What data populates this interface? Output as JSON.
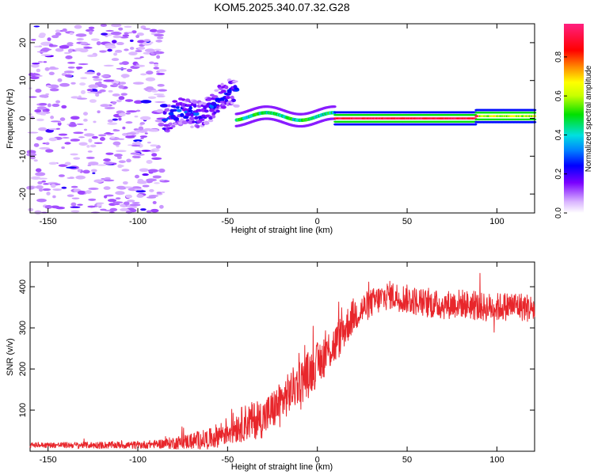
{
  "title": "KOM5.2025.340.07.32.G28",
  "chart_data": [
    {
      "type": "heatmap",
      "xlabel": "Height of straight line (km)",
      "ylabel": "Frequency (Hz)",
      "xlim": [
        -160,
        121
      ],
      "ylim": [
        -25,
        25
      ],
      "xticks": [
        -150,
        -100,
        -50,
        0,
        50,
        100
      ],
      "xtick_labels": [
        "-150",
        "-100",
        "-50",
        "0",
        "50",
        "100"
      ],
      "yticks": [
        -20,
        -10,
        0,
        10,
        20
      ],
      "ytick_labels": [
        "-20",
        "-10",
        "0",
        "10",
        "20"
      ],
      "colorbar": {
        "label": "Normalized spectral amplitude",
        "range": [
          0,
          0.97
        ],
        "ticks": [
          0,
          0.2,
          0.4,
          0.6,
          0.8
        ],
        "tick_labels": [
          "0.0",
          "0.2",
          "0.4",
          "0.6",
          "0.8"
        ],
        "colormap": "rainbow (violet-blue-cyan-green-yellow-red-magenta)"
      },
      "features": [
        {
          "name": "noise-speckle",
          "x_range": [
            -160,
            -85
          ],
          "freq_range": [
            -25,
            25
          ],
          "amplitude": 0.05
        },
        {
          "name": "dispersive-rise",
          "x_range": [
            -85,
            -45
          ],
          "freq_start": -1,
          "freq_end": 6,
          "amplitude": 0.25
        },
        {
          "name": "ridge",
          "x_range": [
            -45,
            10
          ],
          "freq": 0.5,
          "amplitude": 0.45
        },
        {
          "name": "strong-ridge",
          "x_range": [
            10,
            121
          ],
          "freq": 0,
          "amplitude": 0.9
        }
      ]
    },
    {
      "type": "line",
      "xlabel": "Height of straight line (km)",
      "ylabel": "SNR (v/v)",
      "xlim": [
        -160,
        121
      ],
      "ylim": [
        0,
        460
      ],
      "xticks": [
        -150,
        -100,
        -50,
        0,
        50,
        100
      ],
      "xtick_labels": [
        "-150",
        "-100",
        "-50",
        "0",
        "50",
        "100"
      ],
      "yticks": [
        100,
        200,
        300,
        400
      ],
      "ytick_labels": [
        "100",
        "200",
        "300",
        "400"
      ],
      "series_color": "#e8262b",
      "trend": {
        "x": [
          -160,
          -100,
          -80,
          -60,
          -50,
          -40,
          -30,
          -20,
          -10,
          0,
          5,
          10,
          20,
          30,
          40,
          50,
          60,
          70,
          80,
          90,
          100,
          110,
          121
        ],
        "y": [
          15,
          15,
          20,
          30,
          50,
          70,
          80,
          120,
          170,
          210,
          240,
          260,
          330,
          360,
          380,
          370,
          360,
          355,
          360,
          350,
          350,
          355,
          345
        ]
      },
      "noise_amplitude": {
        "x": [
          -160,
          -90,
          -60,
          -40,
          -20,
          0,
          10,
          30,
          121
        ],
        "y": [
          6,
          10,
          25,
          45,
          50,
          55,
          50,
          35,
          35
        ]
      }
    }
  ]
}
